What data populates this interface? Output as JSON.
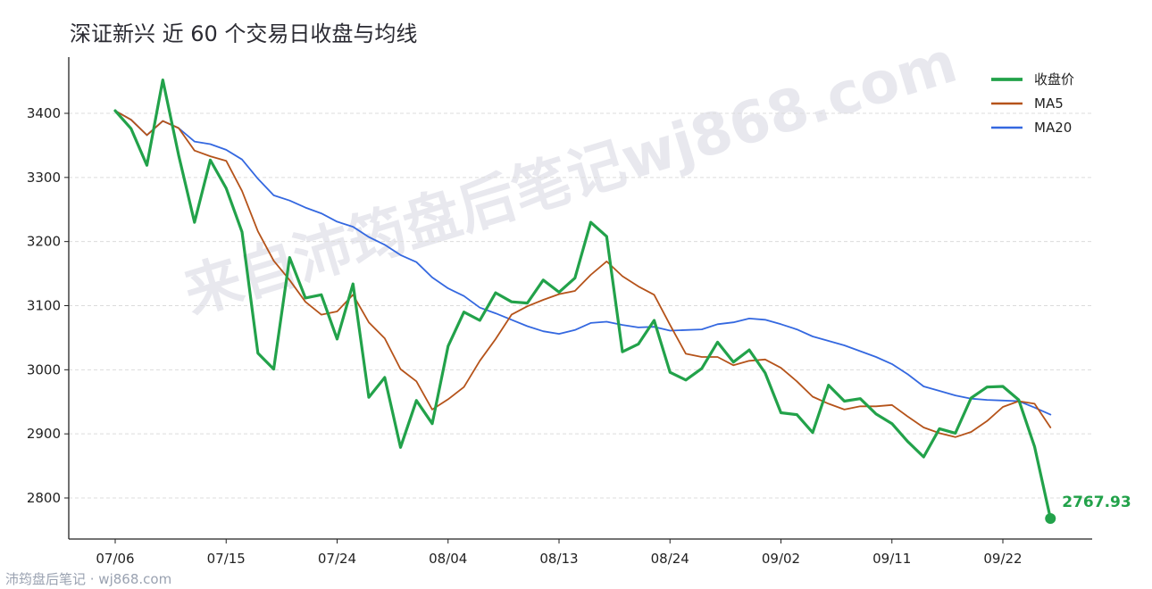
{
  "title": "深证新兴 近 60 个交易日收盘与均线",
  "watermark": "来自沛筠盘后笔记wj868.com",
  "footer": "沛筠盘后笔记 · wj868.com",
  "colors": {
    "close": "#22a24a",
    "ma5": "#b5531a",
    "ma20": "#3468e0"
  },
  "chart_data": {
    "type": "line",
    "title": "深证新兴 近 60 个交易日收盘与均线",
    "x_ticks": [
      "07/06",
      "07/15",
      "07/24",
      "08/04",
      "08/13",
      "08/24",
      "09/02",
      "09/11",
      "09/22"
    ],
    "x_tick_index": [
      0,
      7,
      14,
      21,
      28,
      35,
      42,
      49,
      56
    ],
    "ylim": [
      2740,
      3490
    ],
    "y_ticks": [
      2800,
      2900,
      3000,
      3100,
      3200,
      3300,
      3400
    ],
    "grid": "horizontal dashed",
    "legend_position": "top-right",
    "last_label": "2767.93",
    "series": [
      {
        "name": "收盘价",
        "values": [
          3404,
          3376,
          3319,
          3452,
          3335,
          3230,
          3327,
          3283,
          3215,
          3026,
          3001,
          3175,
          3112,
          3117,
          3048,
          3134,
          2957,
          2988,
          2879,
          2952,
          2916,
          3037,
          3090,
          3077,
          3120,
          3106,
          3104,
          3140,
          3121,
          3143,
          3230,
          3208,
          3028,
          3040,
          3077,
          2996,
          2984,
          3002,
          3043,
          3012,
          3031,
          2995,
          2933,
          2930,
          2902,
          2976,
          2951,
          2955,
          2931,
          2916,
          2888,
          2864,
          2908,
          2901,
          2956,
          2973,
          2974,
          2953,
          2880,
          2767.93
        ]
      },
      {
        "name": "MA5",
        "values": [
          3404,
          3390,
          3366,
          3388,
          3377,
          3342,
          3333,
          3326,
          3279,
          3216,
          3170,
          3140,
          3106,
          3086,
          3091,
          3117,
          3074,
          3049,
          3001,
          2982,
          2938,
          2954,
          2973,
          3014,
          3048,
          3086,
          3099,
          3109,
          3118,
          3123,
          3148,
          3169,
          3146,
          3130,
          3117,
          3070,
          3025,
          3020,
          3020,
          3007,
          3014,
          3016,
          3003,
          2982,
          2958,
          2947,
          2938,
          2943,
          2943,
          2945,
          2927,
          2910,
          2901,
          2895,
          2903,
          2920,
          2942,
          2951,
          2947,
          2910
        ]
      },
      {
        "name": "MA20",
        "values": [
          3404,
          3390,
          3366,
          3388,
          3377,
          3356,
          3352,
          3343,
          3328,
          3298,
          3272,
          3264,
          3253,
          3244,
          3231,
          3223,
          3207,
          3195,
          3179,
          3168,
          3144,
          3127,
          3115,
          3097,
          3088,
          3078,
          3068,
          3060,
          3056,
          3062,
          3073,
          3075,
          3070,
          3066,
          3067,
          3061,
          3062,
          3063,
          3071,
          3074,
          3080,
          3078,
          3071,
          3063,
          3052,
          3045,
          3038,
          3029,
          3020,
          3009,
          2993,
          2974,
          2967,
          2960,
          2955,
          2953,
          2952,
          2951,
          2941,
          2930
        ]
      }
    ]
  }
}
